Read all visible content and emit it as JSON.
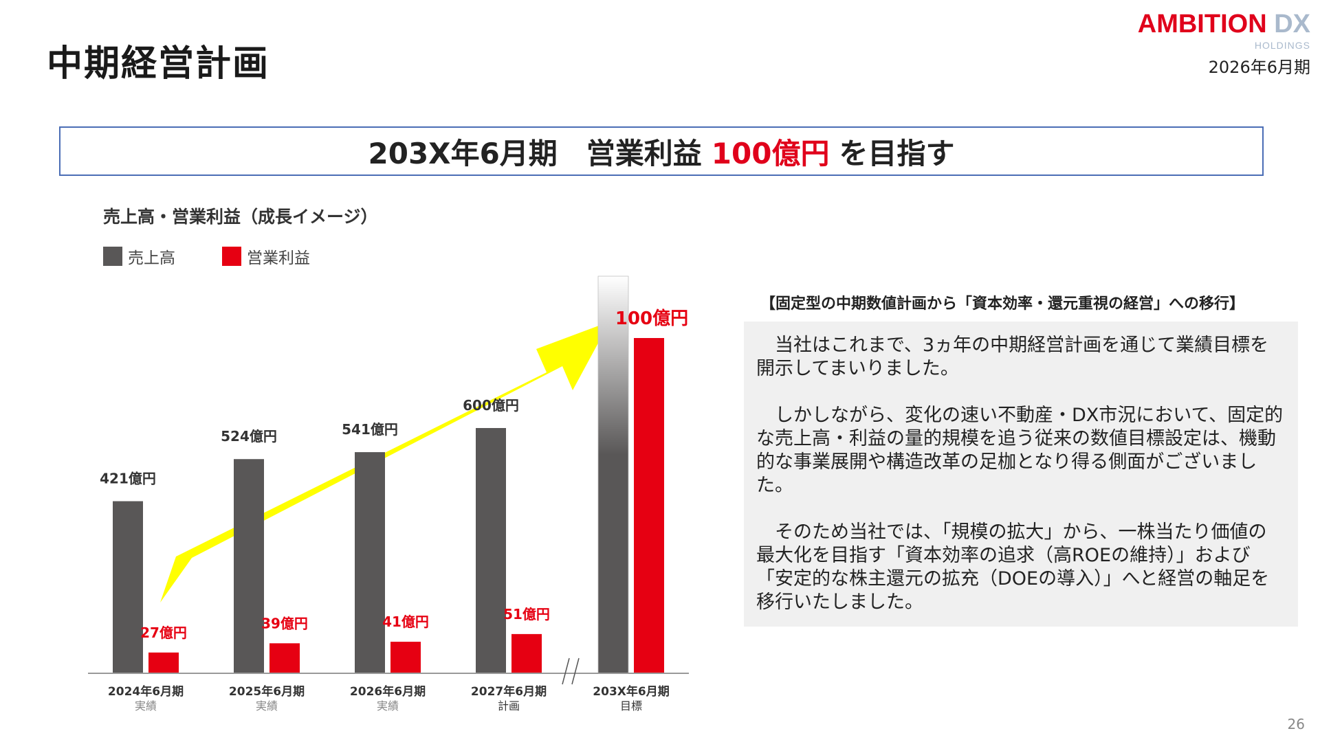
{
  "page": {
    "title": "中期経営計画",
    "period": "2026年6月期",
    "page_number": "26",
    "logo": {
      "main": "AMBITION",
      "accent": "DX",
      "sub": "HOLDINGS"
    }
  },
  "headline": {
    "before": "203X年6月期　営業利益",
    "highlight": "100億円",
    "after": "を目指す"
  },
  "chart_data": {
    "type": "bar",
    "title": "売上高・営業利益（成長イメージ）",
    "categories": [
      "2024年6月期",
      "2025年6月期",
      "2026年6月期",
      "2027年6月期",
      "203X年6月期"
    ],
    "category_sublabels": [
      "実績",
      "実績",
      "実績",
      "計画",
      "目標"
    ],
    "series": [
      {
        "name": "売上高",
        "color": "#595757",
        "values": [
          421,
          524,
          541,
          600,
          null
        ],
        "labels": [
          "421億円",
          "524億円",
          "541億円",
          "600億円",
          ""
        ]
      },
      {
        "name": "営業利益",
        "color": "#e60012",
        "values": [
          27,
          39,
          41,
          51,
          100
        ],
        "labels": [
          "27億円",
          "39億円",
          "41億円",
          "51億円",
          "100億円"
        ]
      }
    ],
    "axis_break_before_index": 4,
    "arrow": {
      "color": "#ffff00",
      "direction": "up-right"
    },
    "legend": "top-left",
    "grid": false
  },
  "text_section": {
    "heading": "【固定型の中期数値計画から「資本効率・還元重視の経営」への移行】",
    "paragraphs": [
      "当社はこれまで、3ヵ年の中期経営計画を通じて業績目標を開示してまいりました。",
      "しかしながら、変化の速い不動産・DX市況において、固定的な売上高・利益の量的規模を追う従来の数値目標設定は、機動的な事業展開や構造改革の足枷となり得る側面がございました。",
      "そのため当社では、「規模の拡大」から、一株当たり価値の最大化を目指す「資本効率の追求（高ROEの維持）」および「安定的な株主還元の拡充（DOEの導入）」へと経営の軸足を移行いたしました。"
    ]
  }
}
